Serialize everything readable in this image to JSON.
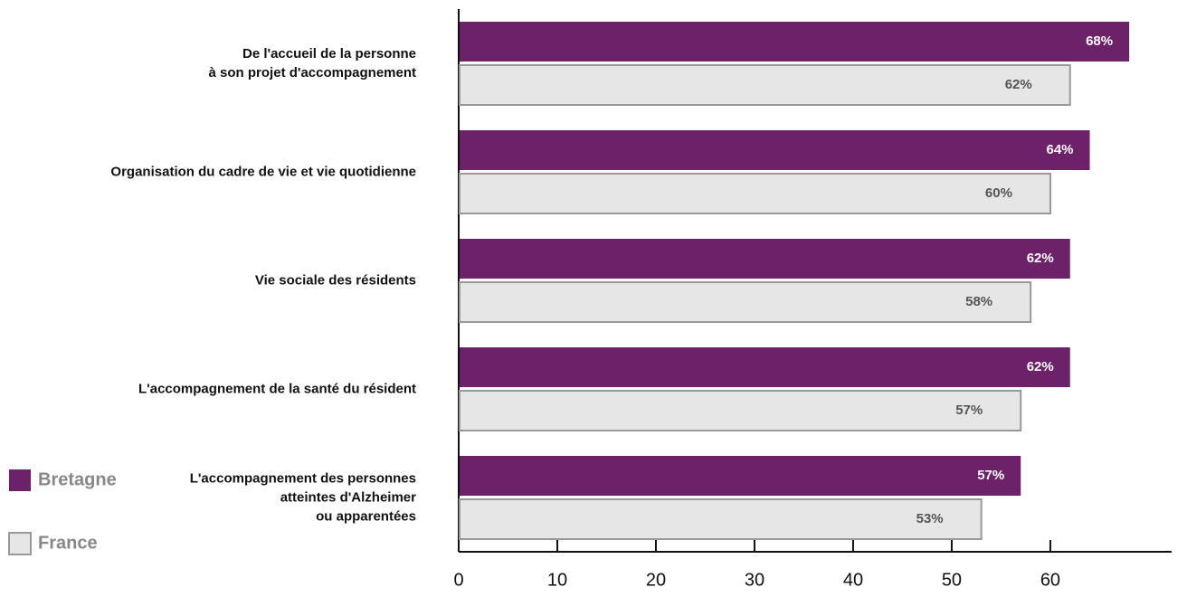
{
  "chart_data": {
    "type": "bar",
    "orientation": "horizontal",
    "categories": [
      "De l'accueil de la personne\nà son projet d'accompagnement",
      "Organisation du cadre de vie et vie quotidienne",
      "Vie sociale des résidents",
      "L'accompagnement de la santé du résident",
      "L'accompagnement des personnes\natteintes d'Alzheimer\nou apparentées"
    ],
    "series": [
      {
        "name": "Bretagne",
        "color": "#6d2168",
        "values": [
          68,
          64,
          62,
          62,
          57
        ],
        "value_labels": [
          "68%",
          "64%",
          "62%",
          "62%",
          "57%"
        ]
      },
      {
        "name": "France",
        "color": "#e6e6e7",
        "values": [
          62,
          60,
          58,
          57,
          53
        ],
        "value_labels": [
          "62%",
          "60%",
          "58%",
          "57%",
          "53%"
        ]
      }
    ],
    "xlim": [
      0,
      72.3
    ],
    "xticks": [
      0,
      10,
      20,
      30,
      40,
      50,
      60
    ],
    "legend": "bottom-left"
  }
}
